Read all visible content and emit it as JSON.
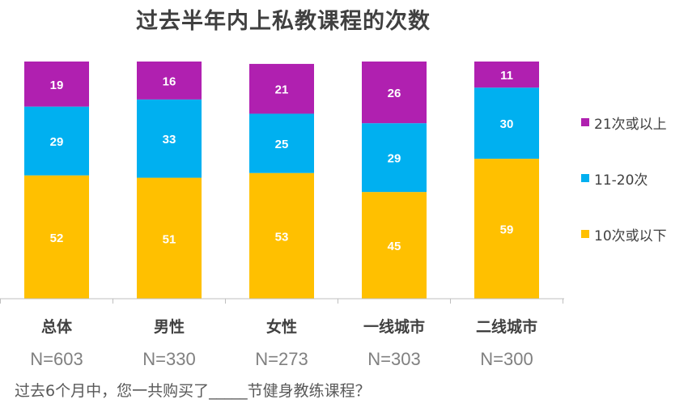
{
  "chart_data": {
    "type": "bar",
    "stacked": true,
    "title": "过去半年内上私教课程的次数",
    "categories": [
      "总体",
      "男性",
      "女性",
      "一线城市",
      "二线城市"
    ],
    "sample_sizes": [
      "N=603",
      "N=330",
      "N=273",
      "N=303",
      "N=300"
    ],
    "series": [
      {
        "name": "10次或以下",
        "color": "#FFC000",
        "values": [
          52,
          51,
          53,
          45,
          59
        ]
      },
      {
        "name": "11-20次",
        "color": "#00B0F0",
        "values": [
          29,
          33,
          25,
          29,
          30
        ]
      },
      {
        "name": "21次或以上",
        "color": "#B020B0",
        "values": [
          19,
          16,
          21,
          26,
          11
        ]
      }
    ],
    "legend_order": [
      "21次或以上",
      "11-20次",
      "10次或以下"
    ],
    "ylim": [
      0,
      100
    ],
    "xlabel": "",
    "ylabel": "",
    "footnote": "过去6个月中，您一共购买了_____节健身教练课程？"
  }
}
